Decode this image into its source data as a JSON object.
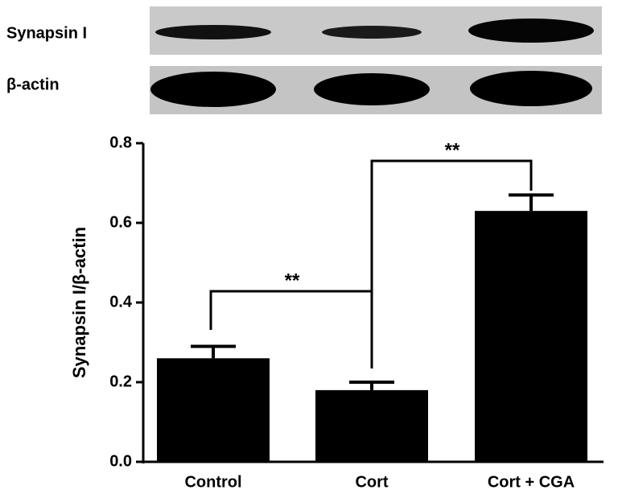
{
  "blot_labels": [
    "Synapsin I",
    "β-actin"
  ],
  "chart_data": {
    "type": "bar",
    "ylabel": "Synapsin I/β-actin",
    "categories": [
      "Control",
      "Cort",
      "Cort + CGA"
    ],
    "values": [
      0.26,
      0.18,
      0.63
    ],
    "errors": [
      0.03,
      0.02,
      0.04
    ],
    "color": "#000000",
    "ylim": [
      0,
      0.8
    ],
    "yticks": [
      {
        "value": 0,
        "label": "0.0"
      },
      0.2,
      0.4,
      0.6,
      0.8
    ],
    "annotations": [
      "**",
      "**"
    ]
  }
}
